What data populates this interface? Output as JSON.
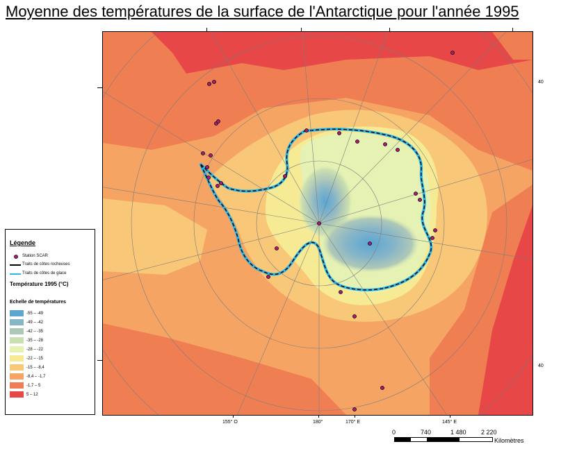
{
  "title": "Moyenne des températures de la surface de l'Antarctique pour l'année 1995",
  "map": {
    "bottom_labels": [
      "155° O",
      "180°",
      "170° E",
      "145° E"
    ],
    "right_labels": [
      "40",
      "40"
    ]
  },
  "legend": {
    "title": "Légende",
    "items": [
      {
        "label": "Station SCAR",
        "symbol": "station-dot",
        "color": "#b0187a"
      },
      {
        "label": "Traits de côtes rocheuses",
        "symbol": "line",
        "color": "#000000"
      },
      {
        "label": "Traits de côtes de glace",
        "symbol": "line",
        "color": "#29b6e8"
      }
    ],
    "subtitle": "Température 1995 (°C)",
    "scale_title": "Echelle de températures",
    "classes": [
      {
        "range": "-55 – -49",
        "color": "#5aa7d2"
      },
      {
        "range": "-49 – -42",
        "color": "#86b5c8"
      },
      {
        "range": "-42 – -35",
        "color": "#aec8b8"
      },
      {
        "range": "-35 – -28",
        "color": "#cbe0b0"
      },
      {
        "range": "-28 – -22",
        "color": "#e6f2b4"
      },
      {
        "range": "-22 – -15",
        "color": "#f7ea94"
      },
      {
        "range": "-15 – -8,4",
        "color": "#f9c778"
      },
      {
        "range": "-8,4 – -1,7",
        "color": "#f5a463"
      },
      {
        "range": "-1,7 – 5",
        "color": "#ef7e52"
      },
      {
        "range": "5 – 12",
        "color": "#e74747"
      }
    ]
  },
  "scale_bar": {
    "ticks": [
      "0",
      "740",
      "1 480",
      "2 220"
    ],
    "unit": "Kilomètres"
  },
  "colors": {
    "coast_rock": "#000000",
    "coast_ice": "#29b6e8",
    "station": "#b0187a",
    "graticule": "#7d7d7d"
  }
}
